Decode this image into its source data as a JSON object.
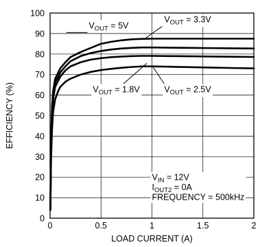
{
  "chart_data": {
    "type": "line",
    "xlabel": "LOAD CURRENT (A)",
    "ylabel": "EFFICIENCY (%)",
    "xlim": [
      0,
      2
    ],
    "ylim": [
      0,
      100
    ],
    "x_ticks": [
      "0",
      "0.5",
      "1",
      "1.5",
      "2"
    ],
    "y_ticks": [
      "0",
      "10",
      "20",
      "30",
      "40",
      "50",
      "60",
      "70",
      "80",
      "90",
      "100"
    ],
    "grid": true,
    "series": [
      {
        "name_main": "V",
        "name_sub": "OUT",
        "name_value": " = 5V",
        "x": [
          0.01,
          0.02,
          0.03,
          0.05,
          0.08,
          0.1,
          0.15,
          0.2,
          0.3,
          0.4,
          0.5,
          0.6,
          0.7,
          0.8,
          0.9,
          1.0,
          1.2,
          1.4,
          1.6,
          1.8,
          2.0
        ],
        "y": [
          40,
          55,
          62,
          68,
          71,
          73,
          76,
          78.5,
          81,
          83,
          85,
          86,
          86.7,
          87.2,
          87.4,
          87.5,
          87.5,
          87.5,
          87.5,
          87.5,
          87.5
        ]
      },
      {
        "name_main": "V",
        "name_sub": "OUT",
        "name_value": " = 3.3V",
        "x": [
          0.01,
          0.02,
          0.03,
          0.05,
          0.08,
          0.1,
          0.15,
          0.2,
          0.3,
          0.4,
          0.5,
          0.6,
          0.7,
          0.8,
          0.9,
          1.0,
          1.2,
          1.4,
          1.6,
          1.8,
          2.0
        ],
        "y": [
          38,
          52,
          60,
          66,
          69,
          71,
          74,
          76.5,
          79,
          80.5,
          81.5,
          82.2,
          82.7,
          83,
          83.2,
          83.2,
          83.1,
          83,
          82.9,
          82.8,
          82.7
        ]
      },
      {
        "name_main": "V",
        "name_sub": "OUT",
        "name_value": " = 2.5V",
        "x": [
          0.01,
          0.02,
          0.03,
          0.05,
          0.08,
          0.1,
          0.15,
          0.2,
          0.3,
          0.4,
          0.5,
          0.6,
          0.7,
          0.8,
          0.9,
          1.0,
          1.2,
          1.4,
          1.6,
          1.8,
          2.0
        ],
        "y": [
          36,
          50,
          58,
          64,
          67,
          69,
          72,
          74,
          76,
          77.3,
          78,
          78.5,
          78.8,
          79,
          79.1,
          79.1,
          79,
          78.9,
          78.8,
          78.7,
          78.6
        ]
      },
      {
        "name_main": "V",
        "name_sub": "OUT",
        "name_value": " = 1.8V",
        "x": [
          0.01,
          0.02,
          0.03,
          0.05,
          0.08,
          0.1,
          0.15,
          0.2,
          0.3,
          0.4,
          0.5,
          0.6,
          0.7,
          0.8,
          0.9,
          1.0,
          1.2,
          1.4,
          1.6,
          1.8,
          2.0
        ],
        "y": [
          30,
          44,
          52,
          58,
          62,
          64,
          66.5,
          68,
          70,
          71.3,
          72.2,
          72.8,
          73.3,
          73.7,
          74,
          74,
          73.8,
          73.6,
          73.4,
          73.2,
          73
        ]
      }
    ],
    "labels": [
      {
        "main": "V",
        "sub": "OUT",
        "value": " = 5V",
        "x": 0.38,
        "y": 92.5,
        "line_to": [
          0.16,
          90.5,
          0.6,
          90.5
        ]
      },
      {
        "main": "V",
        "sub": "OUT",
        "value": " = 3.3V",
        "x": 1.12,
        "y": 95.5,
        "line_to": [
          1.1,
          93.5,
          0.93,
          87.5
        ]
      },
      {
        "main": "V",
        "sub": "OUT",
        "value": " = 1.8V",
        "x": 0.42,
        "y": 61.3,
        "line_to": [
          0.72,
          65.5,
          0.95,
          75.5
        ]
      },
      {
        "main": "V",
        "sub": "OUT",
        "value": " = 2.5V",
        "x": 1.12,
        "y": 61.3,
        "line_to": [
          1.12,
          65.5,
          1.0,
          74.5
        ]
      }
    ],
    "conditions": [
      {
        "main": "V",
        "sub": "IN",
        "value": " = 12V"
      },
      {
        "main": "I",
        "sub": "OUT2",
        "value": " = 0A"
      },
      {
        "main": "",
        "sub": "",
        "value": "FREQUENCY = 500kHz"
      }
    ]
  }
}
